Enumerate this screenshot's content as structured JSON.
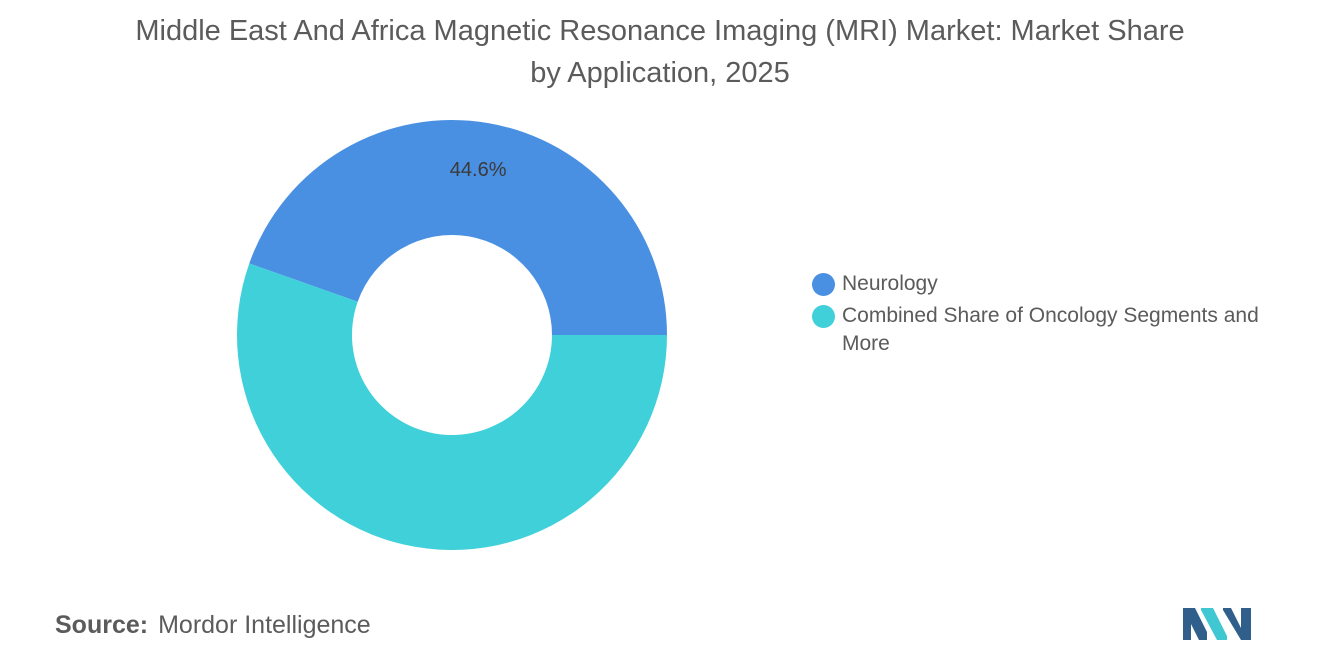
{
  "chart_data": {
    "type": "pie",
    "style": "donut",
    "title": "Middle East And Africa Magnetic Resonance Imaging (MRI) Market: Market Share by Application, 2025",
    "slices": [
      {
        "label": "Neurology",
        "value": 44.6,
        "color": "#4a90e2",
        "data_label": "44.6%"
      },
      {
        "label": "Combined Share of Oncology Segments and More",
        "value": 55.4,
        "color": "#40d0da",
        "data_label": ""
      }
    ],
    "legend_position": "right"
  },
  "source": {
    "label": "Source:",
    "text": "Mordor Intelligence"
  },
  "logo": {
    "icon": "mordor-intelligence-logo-icon",
    "colors": [
      "#2f5f8a",
      "#3fc7d2"
    ]
  }
}
